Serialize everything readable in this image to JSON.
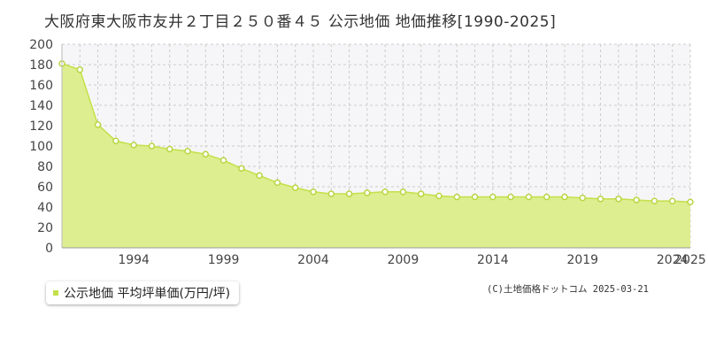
{
  "header": {
    "title": "大阪府東大阪市友井２丁目２５０番４５ 公示地価 地価推移[1990-2025]"
  },
  "legend": {
    "label": "公示地価 平均坪単価(万円/坪)"
  },
  "footer": {
    "credit": "(C)土地価格ドットコム 2025-03-21"
  },
  "colors": {
    "fill": "#dcee8f",
    "line": "#c4e04a",
    "marker_stroke": "#b8d640",
    "grid": "#cccccc",
    "plot_bg": "#f6f6f8"
  },
  "chart_data": {
    "type": "area",
    "title": "",
    "xlabel": "",
    "ylabel": "",
    "ylim": [
      0,
      200
    ],
    "yticks": [
      0,
      20,
      40,
      60,
      80,
      100,
      120,
      140,
      160,
      180,
      200
    ],
    "xlim": [
      1990,
      2025
    ],
    "xtick_labels": [
      "1994",
      "1999",
      "2004",
      "2009",
      "2014",
      "2019",
      "2024",
      "2025"
    ],
    "grid": true,
    "legend_position": "bottom-left",
    "series": [
      {
        "name": "公示地価 平均坪単価(万円/坪)",
        "x": [
          1990,
          1991,
          1992,
          1993,
          1994,
          1995,
          1996,
          1997,
          1998,
          1999,
          2000,
          2001,
          2002,
          2003,
          2004,
          2005,
          2006,
          2007,
          2008,
          2009,
          2010,
          2011,
          2012,
          2013,
          2014,
          2015,
          2016,
          2017,
          2018,
          2019,
          2020,
          2021,
          2022,
          2023,
          2024,
          2025
        ],
        "values": [
          181,
          175,
          121,
          105,
          101,
          100,
          97,
          95,
          92,
          86,
          78,
          71,
          64,
          59,
          55,
          53,
          53,
          54,
          55,
          55,
          53,
          51,
          50,
          50,
          50,
          50,
          50,
          50,
          50,
          49,
          48,
          48,
          47,
          46,
          46,
          45
        ]
      }
    ]
  }
}
